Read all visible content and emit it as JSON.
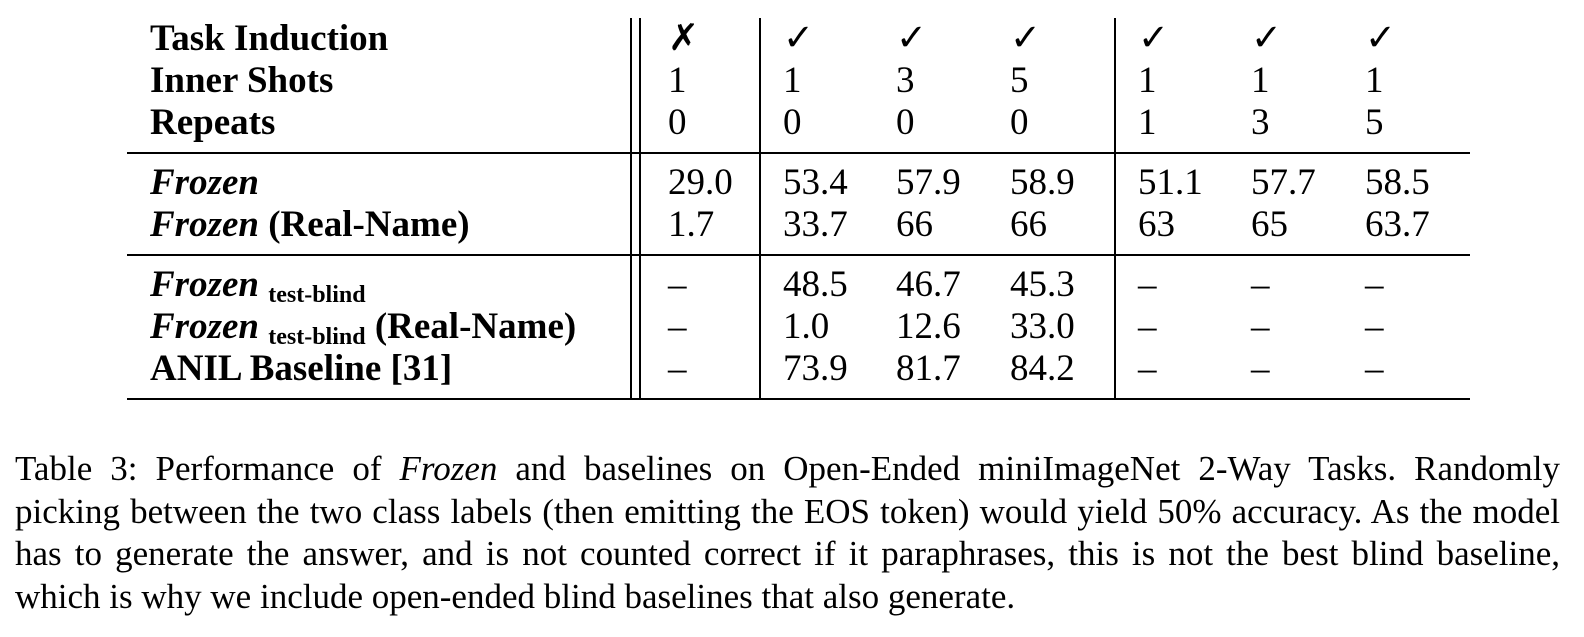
{
  "table": {
    "header": {
      "rows": [
        {
          "label": "Task Induction",
          "values": [
            "✗",
            "✓",
            "✓",
            "✓",
            "✓",
            "✓",
            "✓"
          ]
        },
        {
          "label": "Inner Shots",
          "values": [
            "1",
            "1",
            "3",
            "5",
            "1",
            "1",
            "1"
          ]
        },
        {
          "label": "Repeats",
          "values": [
            "0",
            "0",
            "0",
            "0",
            "1",
            "3",
            "5"
          ]
        }
      ]
    },
    "group1": [
      {
        "label_italic": "Frozen",
        "label_sub": "",
        "label_suffix": "",
        "values": [
          "29.0",
          "53.4",
          "57.9",
          "58.9",
          "51.1",
          "57.7",
          "58.5"
        ]
      },
      {
        "label_italic": "Frozen",
        "label_sub": "",
        "label_suffix": " (Real-Name)",
        "values": [
          "1.7",
          "33.7",
          "66",
          "66",
          "63",
          "65",
          "63.7"
        ]
      }
    ],
    "group2": [
      {
        "label_italic": "Frozen",
        "label_sub": "test-blind",
        "label_suffix": "",
        "values": [
          "–",
          "48.5",
          "46.7",
          "45.3",
          "–",
          "–",
          "–"
        ]
      },
      {
        "label_italic": "Frozen",
        "label_sub": "test-blind",
        "label_suffix": " (Real-Name)",
        "values": [
          "–",
          "1.0",
          "12.6",
          "33.0",
          "–",
          "–",
          "–"
        ]
      },
      {
        "label_italic": "",
        "label_sub": "",
        "label_suffix": "ANIL Baseline [31]",
        "values": [
          "–",
          "73.9",
          "81.7",
          "84.2",
          "–",
          "–",
          "–"
        ]
      }
    ]
  },
  "caption": {
    "prefix": "Table 3: Performance of ",
    "italic": "Frozen",
    "body": " and baselines on Open-Ended miniImageNet 2-Way Tasks. Randomly picking between the two class labels (then emitting the EOS token) would yield 50% accuracy. As the model has to generate the answer, and is not counted correct if it paraphrases, this is not the best blind baseline, which is why we include open-ended blind baselines that also generate."
  }
}
